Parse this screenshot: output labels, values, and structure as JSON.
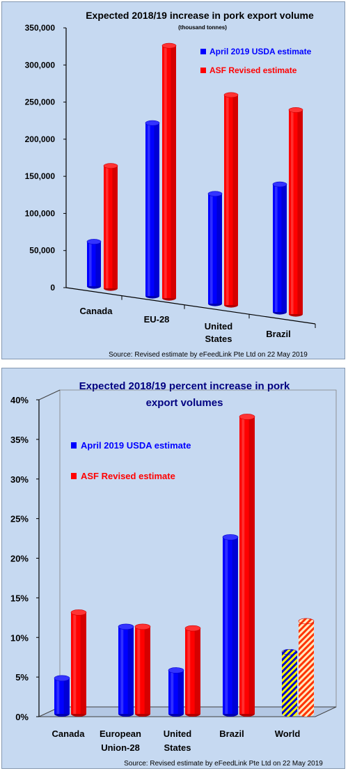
{
  "chart_data": [
    {
      "type": "bar",
      "title": "Expected 2018/19 increase in pork export volume",
      "subtitle": "(thousand tonnes)",
      "categories": [
        "Canada",
        "EU-28",
        "United States",
        "Brazil"
      ],
      "category_lines": [
        [
          "Canada"
        ],
        [
          "EU-28"
        ],
        [
          "United",
          "States"
        ],
        [
          "Brazil"
        ]
      ],
      "series": [
        {
          "name": "April 2019 USDA estimate",
          "values": [
            60000,
            233000,
            148000,
            172000
          ]
        },
        {
          "name": "ASF Revised estimate",
          "values": [
            165000,
            340000,
            283000,
            275000
          ]
        }
      ],
      "y_ticks": [
        "0",
        "50,000",
        "100,000",
        "150,000",
        "200,000",
        "250,000",
        "300,000",
        "350,000"
      ],
      "ylim": [
        0,
        350000
      ],
      "legend": "top-right",
      "source": "Source: Revised estimate  by eFeedLink Pte Ltd on 22 May 2019",
      "colors": {
        "usda": "#0000ff",
        "asf": "#ff0000",
        "title": "#000080"
      }
    },
    {
      "type": "bar",
      "title": "Expected 2018/19 percent increase in pork export volumes",
      "title_lines": [
        "Expected 2018/19 percent increase in pork",
        "export volumes"
      ],
      "categories": [
        "Canada",
        "European Union-28",
        "United States",
        "Brazil",
        "World"
      ],
      "category_lines": [
        [
          "Canada"
        ],
        [
          "European",
          "Union-28"
        ],
        [
          "United",
          "States"
        ],
        [
          "Brazil"
        ],
        [
          "World"
        ]
      ],
      "series": [
        {
          "name": "April 2019 USDA estimate",
          "values": [
            4.5,
            11,
            5.5,
            22.3,
            7.8
          ]
        },
        {
          "name": "ASF Revised estimate",
          "values": [
            12.8,
            11,
            10.8,
            37.5,
            11.7
          ]
        }
      ],
      "y_ticks": [
        "0%",
        "5%",
        "10%",
        "15%",
        "20%",
        "25%",
        "30%",
        "35%",
        "40%"
      ],
      "ylim": [
        0,
        40
      ],
      "legend": "top-left",
      "source": "Source: Revised estimate by eFeedLink Pte Ltd on 22 May 2019",
      "colors": {
        "usda": "#0000ff",
        "asf": "#ff0000",
        "title": "#000080",
        "world_usda_stripe": "#ffff00",
        "world_asf_stripe": "#ffffff"
      }
    }
  ]
}
